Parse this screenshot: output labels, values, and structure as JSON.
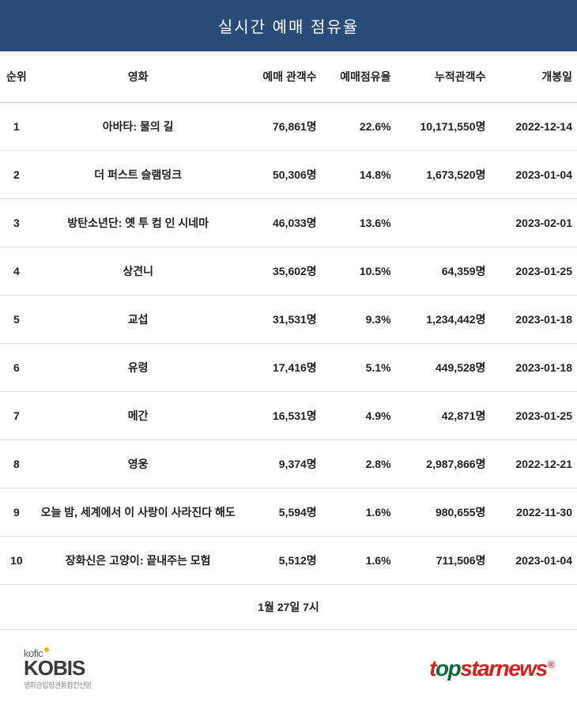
{
  "title": "실시간 예매 점유율",
  "headers": {
    "rank": "순위",
    "movie": "영화",
    "tickets": "예매 관객수",
    "share": "예매점유율",
    "total": "누적관객수",
    "release": "개봉일"
  },
  "rows": [
    {
      "rank": "1",
      "movie": "아바타: 물의 길",
      "tickets": "76,861명",
      "share": "22.6%",
      "total": "10,171,550명",
      "release": "2022-12-14"
    },
    {
      "rank": "2",
      "movie": "더 퍼스트 슬램덩크",
      "tickets": "50,306명",
      "share": "14.8%",
      "total": "1,673,520명",
      "release": "2023-01-04"
    },
    {
      "rank": "3",
      "movie": "방탄소년단: 옛 투 컴 인 시네마",
      "tickets": "46,033명",
      "share": "13.6%",
      "total": "",
      "release": "2023-02-01"
    },
    {
      "rank": "4",
      "movie": "상견니",
      "tickets": "35,602명",
      "share": "10.5%",
      "total": "64,359명",
      "release": "2023-01-25"
    },
    {
      "rank": "5",
      "movie": "교섭",
      "tickets": "31,531명",
      "share": "9.3%",
      "total": "1,234,442명",
      "release": "2023-01-18"
    },
    {
      "rank": "6",
      "movie": "유령",
      "tickets": "17,416명",
      "share": "5.1%",
      "total": "449,528명",
      "release": "2023-01-18"
    },
    {
      "rank": "7",
      "movie": "메간",
      "tickets": "16,531명",
      "share": "4.9%",
      "total": "42,871명",
      "release": "2023-01-25"
    },
    {
      "rank": "8",
      "movie": "영웅",
      "tickets": "9,374명",
      "share": "2.8%",
      "total": "2,987,866명",
      "release": "2022-12-21"
    },
    {
      "rank": "9",
      "movie": "오늘 밤, 세계에서 이 사랑이 사라진다 해도",
      "tickets": "5,594명",
      "share": "1.6%",
      "total": "980,655명",
      "release": "2022-11-30"
    },
    {
      "rank": "10",
      "movie": "장화신은 고양이: 끝내주는 모험",
      "tickets": "5,512명",
      "share": "1.6%",
      "total": "711,506명",
      "release": "2023-01-04"
    }
  ],
  "timestamp": "1월 27일 7시",
  "logos": {
    "kofic": "kofic",
    "kobis": "KOBIS",
    "kobis_sub": "영화관입장권통합전산망",
    "topstar_t": "t",
    "topstar_op": "op",
    "topstar_rest": "starnews",
    "topstar_reg": "®"
  },
  "styling": {
    "title_bg": "#294b7a",
    "title_color": "#ffffff",
    "title_fontsize": 20,
    "header_border": "#c9c9c9",
    "row_border": "#e2e2e2",
    "text_color": "#222222",
    "body_fontsize": 14,
    "kofic_dot_color": "#f2b21c",
    "kobis_color": "#3a3a3a",
    "topstar_red": "#d32222",
    "topstar_green": "#0b6b3a",
    "column_widths": {
      "rank": 40,
      "movie": 255,
      "tickets": 95,
      "share": 90,
      "total": 115,
      "date": 105
    }
  }
}
